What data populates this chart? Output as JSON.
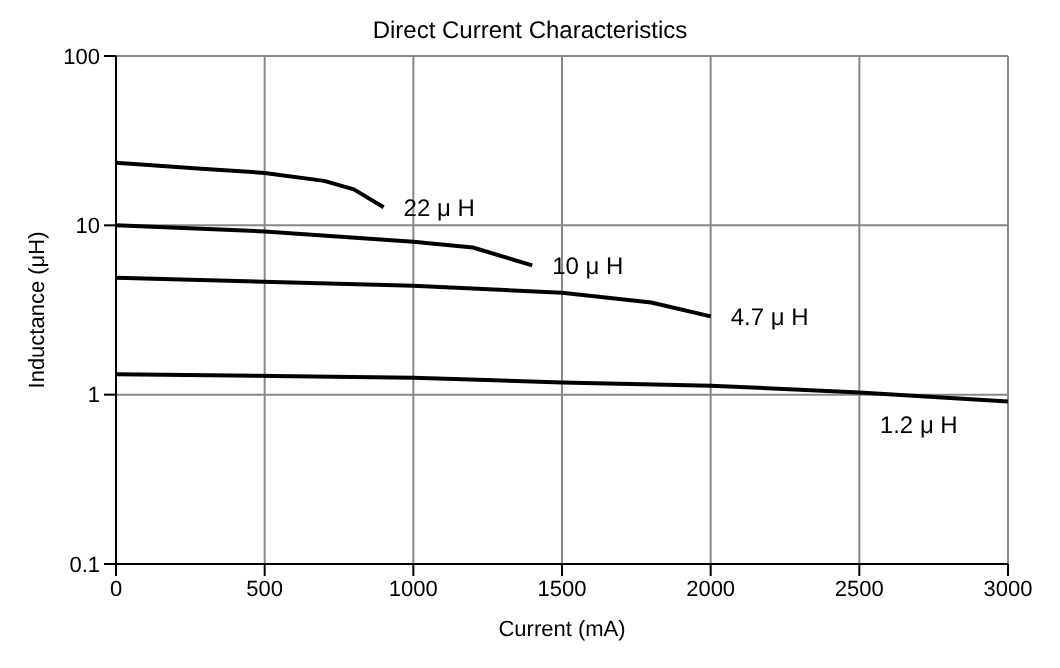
{
  "chart_data": {
    "type": "line",
    "title": "Direct Current Characteristics",
    "xlabel": "Current (mA)",
    "ylabel": "Inductance (μH)",
    "log": "y",
    "grid": true,
    "legend": false,
    "marker": "none",
    "line_style": "solid",
    "xlim": [
      0,
      3000
    ],
    "xticks": [
      0,
      500,
      1000,
      1500,
      2000,
      2500,
      3000
    ],
    "ylim": [
      0.1,
      100
    ],
    "yticks": [
      0.1,
      1,
      10,
      100
    ],
    "series": [
      {
        "color": "#000000",
        "x": [
          0,
          300,
          500,
          700,
          800,
          900
        ],
        "values": [
          23.4,
          21.5,
          20.4,
          18.3,
          16.3,
          12.8
        ]
      },
      {
        "color": "#000000",
        "x": [
          0,
          500,
          1000,
          1200,
          1400
        ],
        "values": [
          10,
          9.2,
          8,
          7.4,
          5.8
        ]
      },
      {
        "color": "#000000",
        "x": [
          0,
          1000,
          1500,
          1800,
          2000
        ],
        "values": [
          4.9,
          4.4,
          4,
          3.5,
          2.9
        ]
      },
      {
        "color": "#000000",
        "x": [
          0,
          1000,
          1500,
          2000,
          2500,
          3000
        ],
        "values": [
          1.32,
          1.26,
          1.18,
          1.13,
          1.03,
          0.91
        ]
      }
    ],
    "annotations": [
      {
        "text": "22 μ H",
        "x": 900,
        "y": 12.8
      },
      {
        "text": "10 μ H",
        "x": 1400,
        "y": 5.8
      },
      {
        "text": "4.7 μ H",
        "x": 2000,
        "y": 2.9
      },
      {
        "text": "1.2 μ H",
        "x": 2700,
        "y": 0.98
      }
    ]
  }
}
